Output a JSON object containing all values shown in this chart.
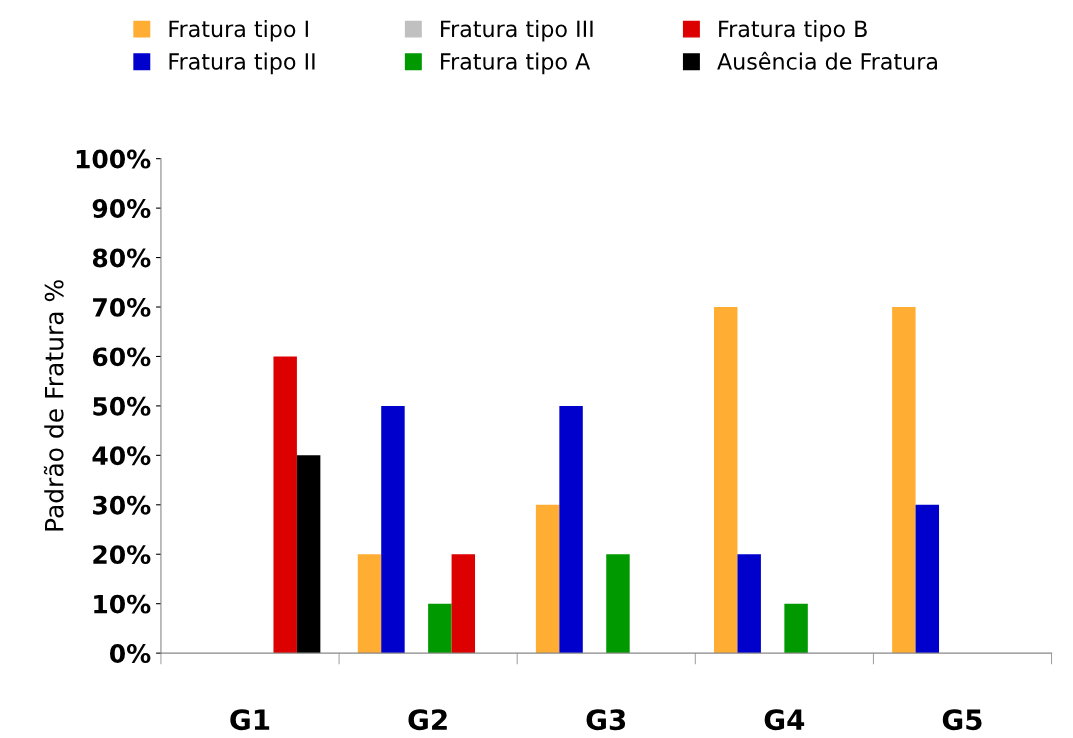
{
  "chart_data": {
    "type": "bar",
    "ylabel": "Padrão de Fratura %",
    "categories": [
      "G1",
      "G2",
      "G3",
      "G4",
      "G5"
    ],
    "series": [
      {
        "name": "Fratura tipo I",
        "color": "#ffad33",
        "values": [
          0,
          20,
          30,
          70,
          70
        ]
      },
      {
        "name": "Fratura tipo II",
        "color": "#0000cc",
        "values": [
          0,
          50,
          50,
          20,
          30
        ]
      },
      {
        "name": "Fratura tipo III",
        "color": "#c0c0c0",
        "values": [
          0,
          0,
          0,
          0,
          0
        ]
      },
      {
        "name": "Fratura tipo A",
        "color": "#009900",
        "values": [
          0,
          10,
          20,
          10,
          0
        ]
      },
      {
        "name": "Fratura tipo B",
        "color": "#dd0000",
        "values": [
          60,
          20,
          0,
          0,
          0
        ]
      },
      {
        "name": "Ausência de Fratura",
        "color": "#000000",
        "values": [
          40,
          0,
          0,
          0,
          0
        ]
      }
    ],
    "ylim": [
      0,
      100
    ],
    "yticks": [
      {
        "value": 0,
        "label": "0%"
      },
      {
        "value": 10,
        "label": "10%"
      },
      {
        "value": 20,
        "label": "20%"
      },
      {
        "value": 30,
        "label": "30%"
      },
      {
        "value": 40,
        "label": "40%"
      },
      {
        "value": 50,
        "label": "50%"
      },
      {
        "value": 60,
        "label": "60%"
      },
      {
        "value": 70,
        "label": "70%"
      },
      {
        "value": 80,
        "label": "80%"
      },
      {
        "value": 90,
        "label": "90%"
      },
      {
        "value": 100,
        "label": "100%"
      }
    ],
    "grid": false,
    "legend": "top"
  }
}
